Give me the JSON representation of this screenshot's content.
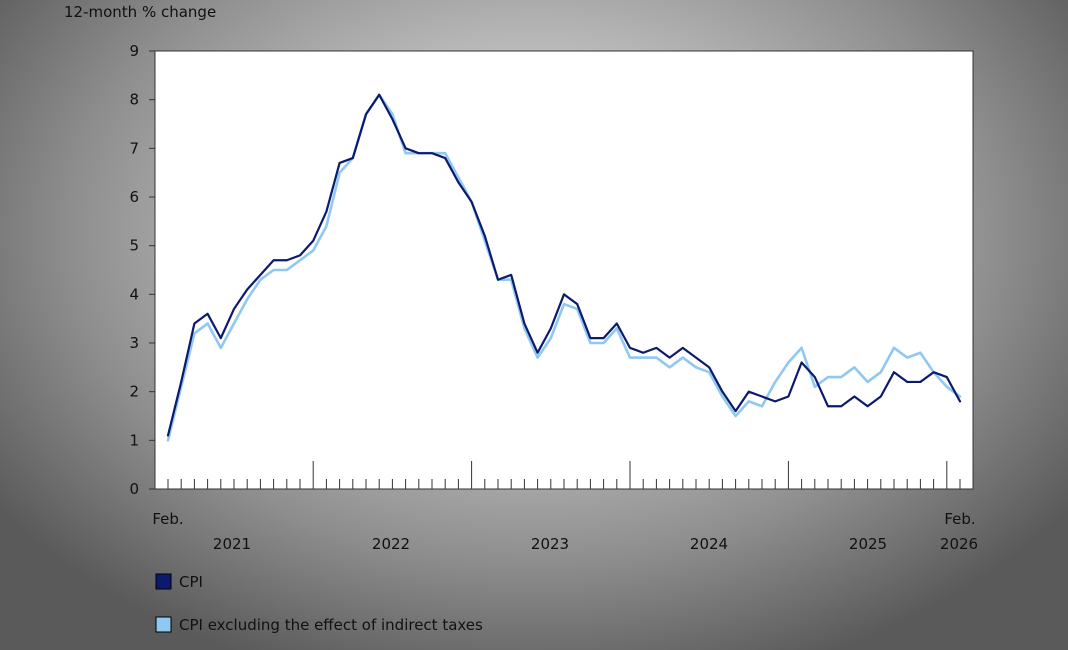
{
  "chart_data": {
    "type": "line",
    "ylabel": "12-month % change",
    "ylim": [
      0,
      9
    ],
    "yticks": [
      0,
      1,
      2,
      3,
      4,
      5,
      6,
      7,
      8,
      9
    ],
    "grid": false,
    "legend_position": "bottom-left",
    "x_start": "Feb. 2021",
    "x_end": "Feb. 2026",
    "x_start_label": "Feb.",
    "x_end_label": "Feb.",
    "year_labels": [
      "2021",
      "2022",
      "2023",
      "2024",
      "2025",
      "2026"
    ],
    "series": [
      {
        "name": "CPI",
        "color": "#0b1a6e",
        "values": [
          1.1,
          2.2,
          3.4,
          3.6,
          3.1,
          3.7,
          4.1,
          4.4,
          4.7,
          4.7,
          4.8,
          5.1,
          5.7,
          6.7,
          6.8,
          7.7,
          8.1,
          7.6,
          7.0,
          6.9,
          6.9,
          6.8,
          6.3,
          5.9,
          5.2,
          4.3,
          4.4,
          3.4,
          2.8,
          3.3,
          4.0,
          3.8,
          3.1,
          3.1,
          3.4,
          2.9,
          2.8,
          2.9,
          2.7,
          2.9,
          2.7,
          2.5,
          2.0,
          1.6,
          2.0,
          1.9,
          1.8,
          1.9,
          2.6,
          2.3,
          1.7,
          1.7,
          1.9,
          1.7,
          1.9,
          2.4,
          2.2,
          2.2,
          2.4,
          2.3,
          1.8
        ]
      },
      {
        "name": "CPI excluding the effect of indirect taxes",
        "color": "#8fc8f0",
        "values": [
          1.0,
          2.1,
          3.2,
          3.4,
          2.9,
          3.4,
          3.9,
          4.3,
          4.5,
          4.5,
          4.7,
          4.9,
          5.4,
          6.5,
          6.8,
          7.7,
          8.1,
          7.7,
          6.9,
          6.9,
          6.9,
          6.9,
          6.4,
          5.9,
          5.1,
          4.3,
          4.3,
          3.3,
          2.7,
          3.1,
          3.8,
          3.7,
          3.0,
          3.0,
          3.3,
          2.7,
          2.7,
          2.7,
          2.5,
          2.7,
          2.5,
          2.4,
          1.9,
          1.5,
          1.8,
          1.7,
          2.2,
          2.6,
          2.9,
          2.1,
          2.3,
          2.3,
          2.5,
          2.2,
          2.4,
          2.9,
          2.7,
          2.8,
          2.4,
          2.1,
          1.9
        ]
      }
    ]
  }
}
